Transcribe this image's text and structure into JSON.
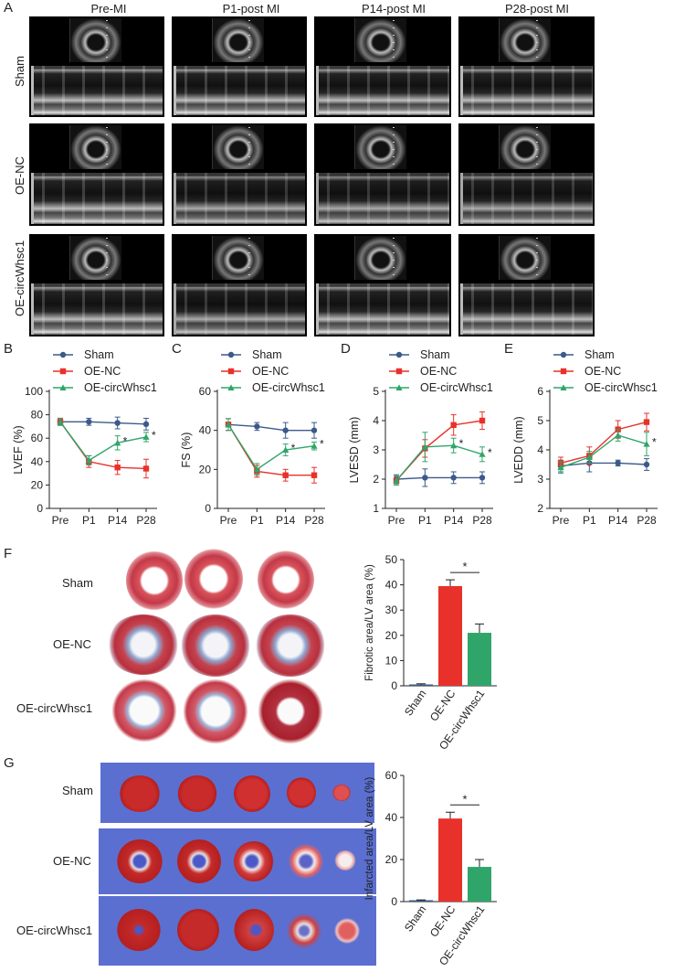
{
  "panel_letters": {
    "a": "A",
    "b": "B",
    "c": "C",
    "d": "D",
    "e": "E",
    "f": "F",
    "g": "G"
  },
  "echo": {
    "columns": [
      "Pre-MI",
      "P1-post MI",
      "P14-post MI",
      "P28-post MI"
    ],
    "rows": [
      "Sham",
      "OE-NC",
      "OE-circWhsc1"
    ]
  },
  "line_legend": [
    "Sham",
    "OE-NC",
    "OE-circWhsc1"
  ],
  "colors": {
    "sham": "#3b5a8a",
    "oenc": "#e8312a",
    "oecirc": "#2fa56a"
  },
  "chart_data": [
    {
      "type": "line",
      "ylabel": "LVEF (%)",
      "categories": [
        "Pre",
        "P1",
        "P14",
        "P28"
      ],
      "ylim": [
        0,
        100
      ],
      "yticks": [
        0,
        20,
        40,
        60,
        80,
        100
      ],
      "series": [
        {
          "name": "Sham",
          "values": [
            74,
            74,
            73,
            72
          ],
          "err": [
            3,
            3,
            5,
            5
          ]
        },
        {
          "name": "OE-NC",
          "values": [
            74,
            40,
            35,
            34
          ],
          "err": [
            3,
            5,
            6,
            8
          ]
        },
        {
          "name": "OE-circWhsc1",
          "values": [
            74,
            41,
            56,
            61
          ],
          "err": [
            3,
            4,
            6,
            4
          ]
        }
      ],
      "sig": [
        {
          "x": 2,
          "text": "*"
        },
        {
          "x": 3,
          "text": "*"
        }
      ]
    },
    {
      "type": "line",
      "ylabel": "FS (%)",
      "categories": [
        "Pre",
        "P1",
        "P14",
        "P28"
      ],
      "ylim": [
        0,
        60
      ],
      "yticks": [
        0,
        20,
        40,
        60
      ],
      "series": [
        {
          "name": "Sham",
          "values": [
            43,
            42,
            40,
            40
          ],
          "err": [
            3,
            2,
            4,
            4
          ]
        },
        {
          "name": "OE-NC",
          "values": [
            43,
            19,
            17,
            17
          ],
          "err": [
            3,
            3,
            3,
            4
          ]
        },
        {
          "name": "OE-circWhsc1",
          "values": [
            43,
            20,
            30,
            32
          ],
          "err": [
            3,
            3,
            3,
            2
          ]
        }
      ],
      "sig": [
        {
          "x": 2,
          "text": "*"
        },
        {
          "x": 3,
          "text": "*"
        }
      ]
    },
    {
      "type": "line",
      "ylabel": "LVESD (mm)",
      "categories": [
        "Pre",
        "P1",
        "P14",
        "P28"
      ],
      "ylim": [
        1,
        5
      ],
      "yticks": [
        1,
        2,
        3,
        4,
        5
      ],
      "series": [
        {
          "name": "Sham",
          "values": [
            2.0,
            2.05,
            2.05,
            2.05
          ],
          "err": [
            0.15,
            0.3,
            0.2,
            0.2
          ]
        },
        {
          "name": "OE-NC",
          "values": [
            1.95,
            3.05,
            3.85,
            4.0
          ],
          "err": [
            0.15,
            0.3,
            0.35,
            0.3
          ]
        },
        {
          "name": "OE-circWhsc1",
          "values": [
            1.95,
            3.1,
            3.15,
            2.85
          ],
          "err": [
            0.15,
            0.5,
            0.25,
            0.25
          ]
        }
      ],
      "sig": [
        {
          "x": 2,
          "text": "*"
        },
        {
          "x": 3,
          "text": "*"
        }
      ]
    },
    {
      "type": "line",
      "ylabel": "LVEDD (mm)",
      "categories": [
        "Pre",
        "P1",
        "P14",
        "P28"
      ],
      "ylim": [
        2,
        6
      ],
      "yticks": [
        2,
        3,
        4,
        5,
        6
      ],
      "series": [
        {
          "name": "Sham",
          "values": [
            3.45,
            3.55,
            3.55,
            3.5
          ],
          "err": [
            0.2,
            0.3,
            0.1,
            0.2
          ]
        },
        {
          "name": "OE-NC",
          "values": [
            3.55,
            3.8,
            4.7,
            4.95
          ],
          "err": [
            0.2,
            0.3,
            0.3,
            0.3
          ]
        },
        {
          "name": "OE-circWhsc1",
          "values": [
            3.4,
            3.75,
            4.5,
            4.2
          ],
          "err": [
            0.2,
            0.2,
            0.2,
            0.4
          ]
        }
      ],
      "sig": [
        {
          "x": 3,
          "text": "*"
        }
      ]
    },
    {
      "type": "bar",
      "ylabel": "Fibrotic area/LV area (%)",
      "categories": [
        "Sham",
        "OE-NC",
        "OE-circWhsc1"
      ],
      "values": [
        0.5,
        39.5,
        21
      ],
      "err": [
        0.3,
        2.5,
        3.5
      ],
      "ylim": [
        0,
        50
      ],
      "yticks": [
        0,
        10,
        20,
        30,
        40,
        50
      ],
      "sig": {
        "from": 1,
        "to": 2,
        "text": "*"
      }
    },
    {
      "type": "bar",
      "ylabel": "Infarcted area/LV area (%)",
      "categories": [
        "Sham",
        "OE-NC",
        "OE-circWhsc1"
      ],
      "values": [
        0.5,
        39.5,
        16.5
      ],
      "err": [
        0.3,
        3,
        3.5
      ],
      "ylim": [
        0,
        60
      ],
      "yticks": [
        0,
        20,
        40,
        60
      ],
      "sig": {
        "from": 1,
        "to": 2,
        "text": "*"
      }
    }
  ],
  "masson_rows": [
    "Sham",
    "OE-NC",
    "OE-circWhsc1"
  ],
  "ttc_rows": [
    "Sham",
    "OE-NC",
    "OE-circWhsc1"
  ]
}
